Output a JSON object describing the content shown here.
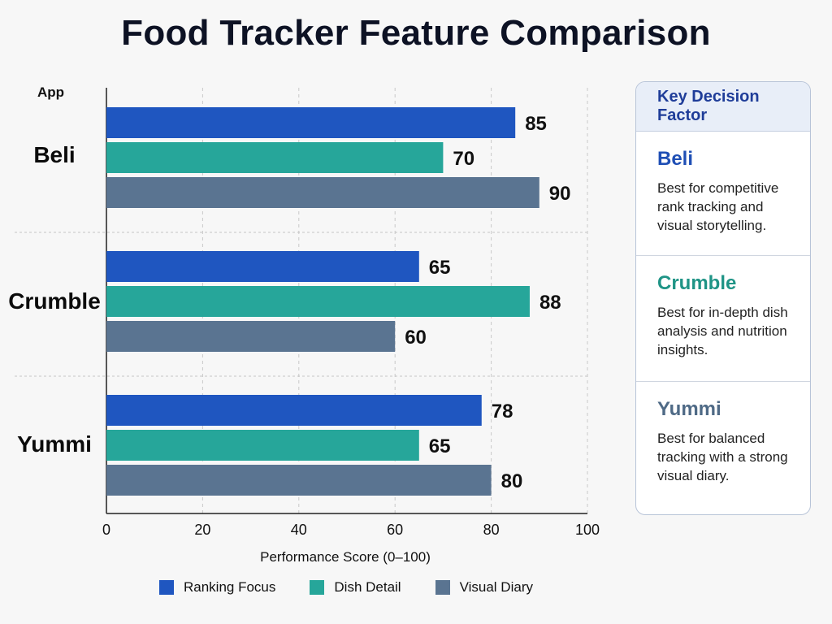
{
  "title": "Food Tracker Feature Comparison",
  "chart_data": {
    "type": "bar",
    "orientation": "horizontal",
    "title": "Food Tracker Feature Comparison",
    "ylabel": "App",
    "xlabel": "Performance Score (0–100)",
    "xlim": [
      0,
      100
    ],
    "xticks": [
      0,
      20,
      40,
      60,
      80,
      100
    ],
    "categories": [
      "Beli",
      "Crumble",
      "Yummi"
    ],
    "series": [
      {
        "name": "Ranking Focus",
        "color": "#1f56c0",
        "values": [
          85,
          65,
          78
        ]
      },
      {
        "name": "Dish Detail",
        "color": "#26a69a",
        "values": [
          70,
          88,
          65
        ]
      },
      {
        "name": "Visual Diary",
        "color": "#5a7491",
        "values": [
          90,
          60,
          80
        ]
      }
    ],
    "grid": "vertical dashed",
    "legend_position": "bottom"
  },
  "panel": {
    "title": "Key Decision Factor",
    "items": [
      {
        "name": "Beli",
        "color": "#1f4fb5",
        "desc": "Best for competitive rank tracking and visual storytelling."
      },
      {
        "name": "Crumble",
        "color": "#1f9486",
        "desc": "Best for in-depth dish analysis and nutrition insights."
      },
      {
        "name": "Yummi",
        "color": "#4f6a86",
        "desc": "Best for balanced tracking with a strong visual diary."
      }
    ]
  }
}
